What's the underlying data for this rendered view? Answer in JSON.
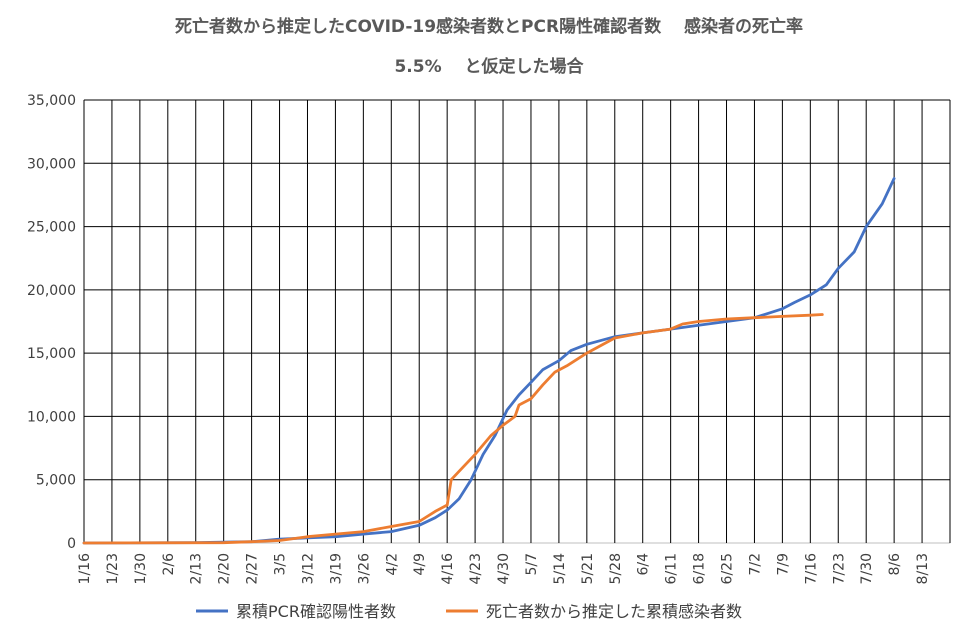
{
  "chart_data": {
    "type": "line",
    "title": "死亡者数から推定したCOVID-19感染者数とPCR陽性確認者数　 感染者の死亡率",
    "subtitle": "5.5%　 と仮定した場合",
    "xlabel": "",
    "ylabel": "",
    "ylim": [
      0,
      35000
    ],
    "yticks": [
      0,
      5000,
      10000,
      15000,
      20000,
      25000,
      30000,
      35000
    ],
    "ytick_labels": [
      "0",
      "5,000",
      "10,000",
      "15,000",
      "20,000",
      "25,000",
      "30,000",
      "35,000"
    ],
    "xticks": [
      "1/16",
      "1/23",
      "1/30",
      "2/6",
      "2/13",
      "2/20",
      "2/27",
      "3/5",
      "3/12",
      "3/19",
      "3/26",
      "4/2",
      "4/9",
      "4/16",
      "4/23",
      "4/30",
      "5/7",
      "5/14",
      "5/21",
      "5/28",
      "6/4",
      "6/11",
      "6/18",
      "6/25",
      "7/2",
      "7/9",
      "7/16",
      "7/23",
      "7/30",
      "8/6",
      "8/13"
    ],
    "grid": true,
    "legend_position": "bottom",
    "series": [
      {
        "name": "累積PCR確認陽性者数",
        "color": "#4472C4",
        "points": [
          [
            "1/16",
            0
          ],
          [
            "2/13",
            30
          ],
          [
            "2/27",
            100
          ],
          [
            "3/5",
            300
          ],
          [
            "3/12",
            400
          ],
          [
            "3/19",
            500
          ],
          [
            "3/26",
            700
          ],
          [
            "4/2",
            900
          ],
          [
            "4/9",
            1400
          ],
          [
            "4/13",
            2000
          ],
          [
            "4/16",
            2600
          ],
          [
            "4/19",
            3500
          ],
          [
            "4/22",
            5000
          ],
          [
            "4/25",
            7000
          ],
          [
            "4/28",
            8500
          ],
          [
            "5/1",
            10500
          ],
          [
            "5/4",
            11700
          ],
          [
            "5/7",
            12700
          ],
          [
            "5/10",
            13700
          ],
          [
            "5/14",
            14400
          ],
          [
            "5/17",
            15200
          ],
          [
            "5/21",
            15700
          ],
          [
            "5/28",
            16300
          ],
          [
            "6/4",
            16600
          ],
          [
            "6/11",
            16900
          ],
          [
            "6/18",
            17200
          ],
          [
            "6/25",
            17500
          ],
          [
            "7/2",
            17800
          ],
          [
            "7/5",
            18100
          ],
          [
            "7/9",
            18500
          ],
          [
            "7/12",
            19000
          ],
          [
            "7/16",
            19600
          ],
          [
            "7/20",
            20400
          ],
          [
            "7/23",
            21700
          ],
          [
            "7/27",
            23000
          ],
          [
            "7/30",
            25000
          ],
          [
            "8/3",
            26800
          ],
          [
            "8/6",
            28800
          ]
        ]
      },
      {
        "name": "死亡者数から推定した累積感染者数",
        "color": "#ED7D31",
        "points": [
          [
            "1/16",
            0
          ],
          [
            "2/20",
            20
          ],
          [
            "2/27",
            100
          ],
          [
            "3/5",
            200
          ],
          [
            "3/12",
            500
          ],
          [
            "3/19",
            700
          ],
          [
            "3/26",
            900
          ],
          [
            "4/2",
            1300
          ],
          [
            "4/9",
            1700
          ],
          [
            "4/13",
            2500
          ],
          [
            "4/16",
            3000
          ],
          [
            "4/17",
            5000
          ],
          [
            "4/20",
            6000
          ],
          [
            "4/23",
            7000
          ],
          [
            "4/27",
            8500
          ],
          [
            "4/30",
            9300
          ],
          [
            "5/3",
            10000
          ],
          [
            "5/4",
            10900
          ],
          [
            "5/7",
            11400
          ],
          [
            "5/10",
            12500
          ],
          [
            "5/13",
            13500
          ],
          [
            "5/16",
            14000
          ],
          [
            "5/21",
            15000
          ],
          [
            "5/28",
            16200
          ],
          [
            "6/4",
            16600
          ],
          [
            "6/11",
            16900
          ],
          [
            "6/14",
            17300
          ],
          [
            "6/18",
            17500
          ],
          [
            "6/25",
            17700
          ],
          [
            "7/2",
            17800
          ],
          [
            "7/9",
            17900
          ],
          [
            "7/16",
            18000
          ],
          [
            "7/19",
            18050
          ]
        ]
      }
    ]
  }
}
